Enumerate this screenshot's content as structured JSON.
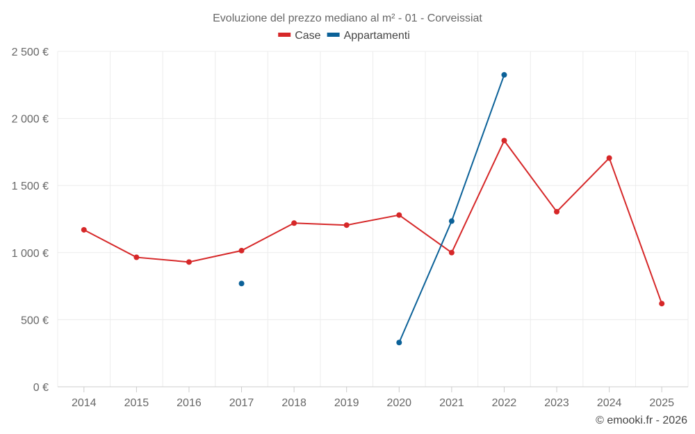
{
  "chart_data": {
    "type": "line",
    "title": "Evoluzione del prezzo mediano al m² - 01 - Corveissiat",
    "categories": [
      "2014",
      "2015",
      "2016",
      "2017",
      "2018",
      "2019",
      "2020",
      "2021",
      "2022",
      "2023",
      "2024",
      "2025"
    ],
    "ylim": [
      0,
      2500
    ],
    "yticks": [
      {
        "value": 0,
        "label": "0 €"
      },
      {
        "value": 500,
        "label": "500 €"
      },
      {
        "value": 1000,
        "label": "1 000 €"
      },
      {
        "value": 1500,
        "label": "1 500 €"
      },
      {
        "value": 2000,
        "label": "2 000 €"
      },
      {
        "value": 2500,
        "label": "2 500 €"
      }
    ],
    "legend_position": "top-center",
    "grid": true,
    "series": [
      {
        "name": "Case",
        "color": "#d62728",
        "values": [
          1170,
          965,
          930,
          1015,
          1220,
          1205,
          1280,
          1000,
          1835,
          1305,
          1705,
          620
        ]
      },
      {
        "name": "Appartamenti",
        "color": "#0b6198",
        "values": [
          null,
          null,
          null,
          770,
          null,
          null,
          330,
          1235,
          2325,
          null,
          null,
          null
        ]
      }
    ]
  },
  "credit": "© emooki.fr - 2026"
}
